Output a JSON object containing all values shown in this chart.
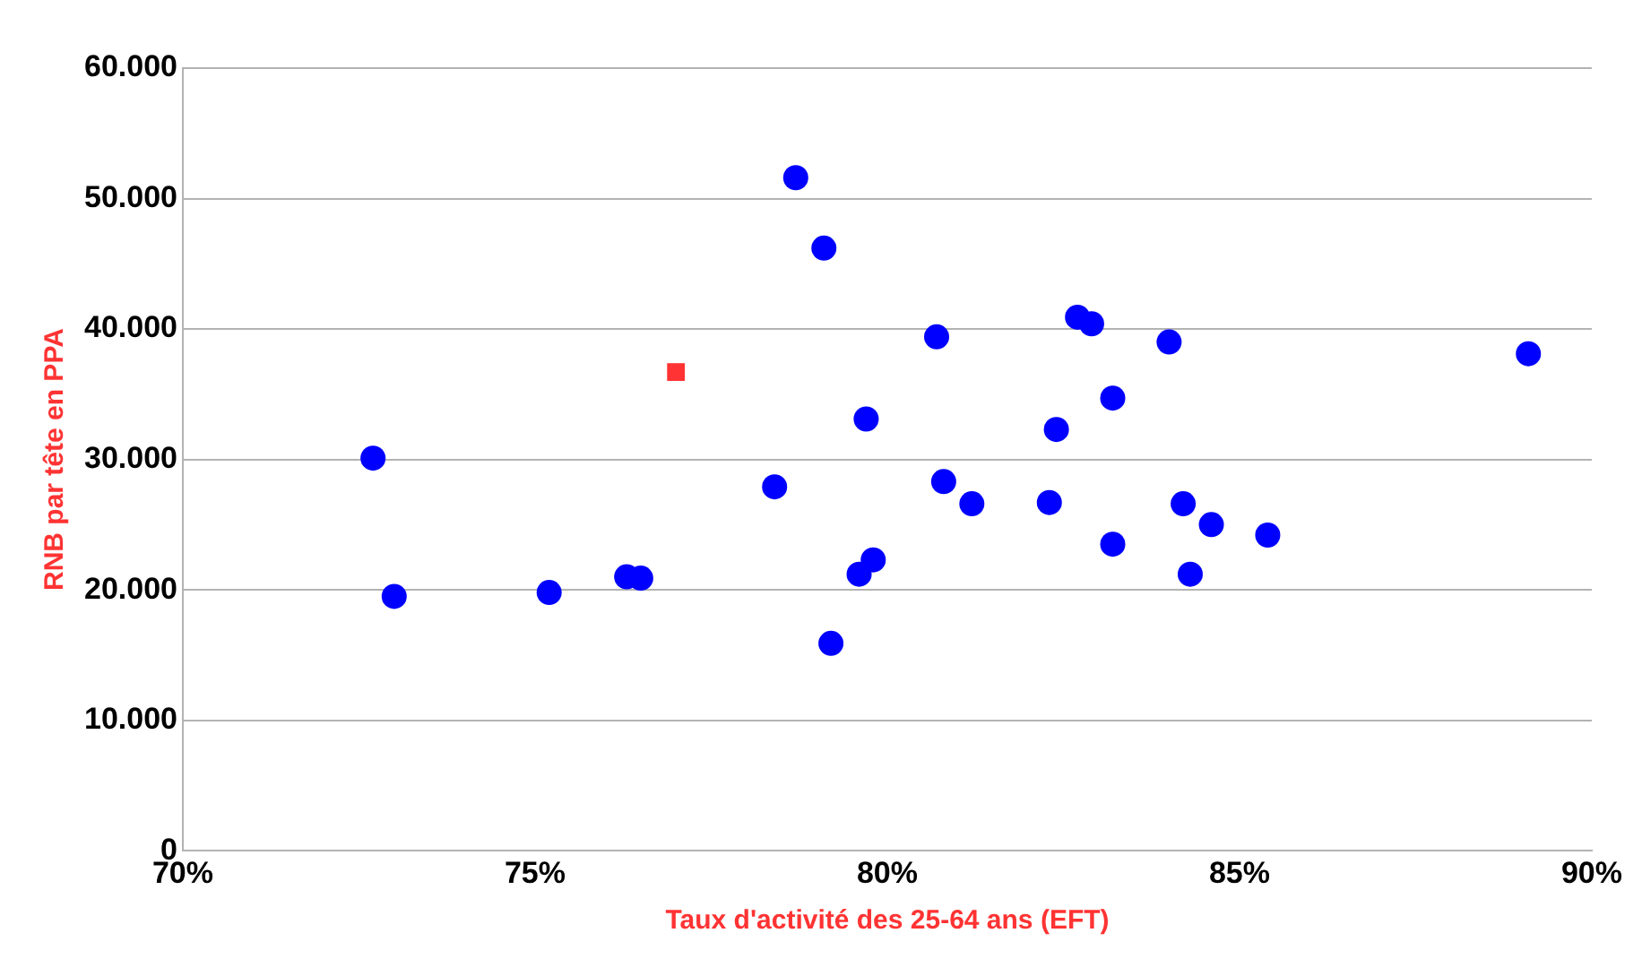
{
  "chart_data": {
    "type": "scatter",
    "xlabel": "Taux d'activité des 25-64 ans (EFT)",
    "ylabel": "RNB par tête en PPA",
    "xlim": [
      70,
      90
    ],
    "xticks": [
      {
        "value": 70,
        "label": "70%"
      },
      {
        "value": 75,
        "label": "75%"
      },
      {
        "value": 80,
        "label": "80%"
      },
      {
        "value": 85,
        "label": "85%"
      },
      {
        "value": 90,
        "label": "90%"
      }
    ],
    "ylim": [
      0,
      60000
    ],
    "yticks": [
      0,
      {
        "value": 10000,
        "label": "10.000"
      },
      {
        "value": 20000,
        "label": "20.000"
      },
      {
        "value": 30000,
        "label": "30.000"
      },
      {
        "value": 40000,
        "label": "40.000"
      },
      {
        "value": 50000,
        "label": "50.000"
      },
      {
        "value": 60000,
        "label": "60.000"
      }
    ],
    "grid": "y",
    "legend": false,
    "series": [
      {
        "color": "#0000ff",
        "marker": "circle",
        "x": [
          72.7,
          73.0,
          75.2,
          76.3,
          76.5,
          78.4,
          78.7,
          79.1,
          79.2,
          79.6,
          79.7,
          79.8,
          80.7,
          80.8,
          81.2,
          82.3,
          82.4,
          82.7,
          82.9,
          83.2,
          83.2,
          84.0,
          84.2,
          84.3,
          84.6,
          85.4,
          89.1
        ],
        "values": [
          30100,
          19500,
          19800,
          21000,
          20900,
          27900,
          51600,
          46200,
          15900,
          21200,
          33100,
          22300,
          39400,
          28300,
          26600,
          26700,
          32300,
          40900,
          40400,
          23500,
          34700,
          39000,
          26600,
          21200,
          25000,
          24200,
          38100
        ]
      },
      {
        "color": "#ff3333",
        "marker": "square",
        "x": [
          77.0
        ],
        "values": [
          36700
        ]
      }
    ]
  }
}
